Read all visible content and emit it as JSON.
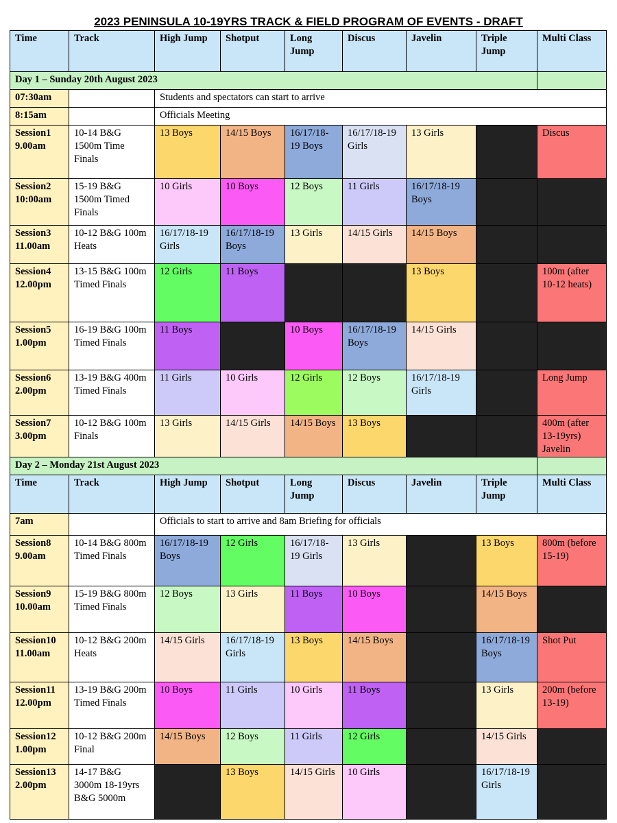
{
  "title": "2023 PENINSULA 10-19YRS TRACK & FIELD PROGRAM OF EVENTS - DRAFT",
  "headers": [
    "Time",
    "Track",
    "High Jump",
    "Shotput",
    "Long Jump",
    "Discus",
    "Javelin",
    "Triple Jump",
    "Multi Class"
  ],
  "day1": {
    "label": "Day 1 – Sunday 20th August 2023",
    "arrive": {
      "time": "07:30am",
      "text": "Students and spectators can start to arrive"
    },
    "meeting": {
      "time": "8:15am",
      "text": "Officials Meeting"
    },
    "sessions": [
      {
        "time": "Session1 9.00am",
        "track": "10-14 B&G 1500m Time Finals",
        "cells": [
          "13 Boys",
          "14/15 Boys",
          "16/17/18-19 Boys",
          "16/17/18-19 Girls",
          "13 Girls",
          "",
          "Discus"
        ]
      },
      {
        "time": "Session2 10:00am",
        "track": "15-19 B&G 1500m Timed Finals",
        "cells": [
          "10 Girls",
          "10 Boys",
          "12 Boys",
          "11 Girls",
          "16/17/18-19 Boys",
          "",
          ""
        ]
      },
      {
        "time": "Session3 11.00am",
        "track": "10-12 B&G 100m Heats",
        "cells": [
          "16/17/18-19 Girls",
          "16/17/18-19 Boys",
          "13 Girls",
          "14/15 Girls",
          "14/15 Boys",
          "",
          ""
        ]
      },
      {
        "time": "Session4 12.00pm",
        "track": "13-15 B&G 100m Timed Finals",
        "cells": [
          "12 Girls",
          "11 Boys",
          "",
          "",
          "13 Boys",
          "",
          "100m (after 10-12 heats)"
        ]
      },
      {
        "time": "Session5 1.00pm",
        "track": "16-19 B&G 100m Timed Finals",
        "cells": [
          "11 Boys",
          "",
          "10 Boys",
          "16/17/18-19 Boys",
          "14/15 Girls",
          "",
          ""
        ]
      },
      {
        "time": "Session6 2.00pm",
        "track": "13-19 B&G 400m Timed Finals",
        "cells": [
          "11 Girls",
          "10 Girls",
          "12 Girls",
          "12 Boys",
          "16/17/18-19 Girls",
          "",
          "Long Jump"
        ]
      },
      {
        "time": "Session7 3.00pm",
        "track": "10-12 B&G 100m Finals",
        "cells": [
          "13 Girls",
          "14/15 Girls",
          "14/15 Boys",
          "13 Boys",
          "",
          "",
          "400m (after 13-19yrs) Javelin"
        ]
      }
    ]
  },
  "day2": {
    "label": "Day 2 – Monday 21st August 2023",
    "arrive": {
      "time": "7am",
      "text": "Officials to start to arrive and 8am Briefing for officials"
    },
    "sessions": [
      {
        "time": "Session8 9.00am",
        "track": "10-14 B&G 800m Timed Finals",
        "cells": [
          "16/17/18-19 Boys",
          "12 Girls",
          "16/17/18-19 Girls",
          "13 Girls",
          "",
          "13 Boys",
          "800m (before 15-19)"
        ]
      },
      {
        "time": "Session9 10.00am",
        "track": "15-19 B&G 800m Timed Finals",
        "cells": [
          "12 Boys",
          "13 Girls",
          "11 Boys",
          "10 Boys",
          "",
          "14/15 Boys",
          ""
        ]
      },
      {
        "time": "Session10 11.00am",
        "track": "10-12 B&G 200m Heats",
        "cells": [
          "14/15 Girls",
          "16/17/18-19 Girls",
          "13 Boys",
          "14/15 Boys",
          "",
          "16/17/18-19 Boys",
          "Shot Put"
        ]
      },
      {
        "time": "Session11 12.00pm",
        "track": "13-19 B&G 200m Timed Finals",
        "cells": [
          "10 Boys",
          "11 Girls",
          "10 Girls",
          "11 Boys",
          "",
          "13 Girls",
          "200m (before 13-19)"
        ]
      },
      {
        "time": "Session12 1.00pm",
        "track": "10-12 B&G 200m Final",
        "cells": [
          "14/15 Boys",
          "12 Boys",
          "11 Girls",
          "12 Girls",
          "",
          "14/15 Girls",
          ""
        ]
      },
      {
        "time": "Session13 2.00pm",
        "track": "14-17 B&G 3000m 18-19yrs B&G 5000m",
        "cells": [
          "",
          "13 Boys",
          "14/15 Girls",
          "10 Girls",
          "",
          "16/17/18-19 Girls",
          ""
        ]
      }
    ]
  },
  "palette": {
    "header_blue": "#c9e6f8",
    "day_green": "#c6f2c4",
    "time_yellow": "#fff2bf",
    "black": "#222222",
    "yellow": "#fcd76c",
    "orange": "#f3b485",
    "blue": "#8eaadb",
    "light_blue": "#d9e1f3",
    "cream": "#fdf1c8",
    "red": "#fb7676",
    "pink": "#fcc9fa",
    "magenta": "#fc5af5",
    "mint": "#c8f8c4",
    "lavender": "#cdcafa",
    "peach": "#fce2d6",
    "sky": "#c9e6f8",
    "green": "#63fc63",
    "purple": "#bf62f4",
    "lime": "#9cfb5f"
  }
}
